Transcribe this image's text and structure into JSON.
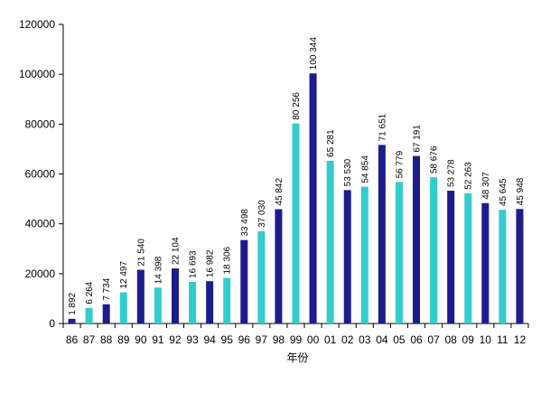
{
  "chart_data": {
    "type": "bar",
    "title": "",
    "xlabel": "年份",
    "ylabel": "",
    "ylim": [
      0,
      120000
    ],
    "yticks": [
      "0",
      "20000",
      "40000",
      "60000",
      "80000",
      "100000",
      "120000"
    ],
    "grid": false,
    "legend": "none",
    "categories": [
      "86",
      "87",
      "88",
      "89",
      "90",
      "91",
      "92",
      "93",
      "94",
      "95",
      "96",
      "97",
      "98",
      "99",
      "00",
      "01",
      "02",
      "03",
      "04",
      "05",
      "06",
      "07",
      "08",
      "09",
      "10",
      "11",
      "12"
    ],
    "values": [
      1892,
      6264,
      7734,
      12497,
      21540,
      14398,
      22104,
      16693,
      16982,
      18306,
      33498,
      37030,
      45842,
      80256,
      100344,
      65281,
      53530,
      54854,
      71651,
      56779,
      67191,
      58676,
      53278,
      52263,
      48307,
      45645,
      45948
    ],
    "value_labels": [
      "1 892",
      "6 264",
      "7 734",
      "12 497",
      "21 540",
      "14 398",
      "22 104",
      "16 693",
      "16 982",
      "18 306",
      "33 498",
      "37 030",
      "45 842",
      "80 256",
      "100 344",
      "65 281",
      "53 530",
      "54 854",
      "71 651",
      "56 779",
      "67 191",
      "58 676",
      "53 278",
      "52 263",
      "48 307",
      "45 645",
      "45 948"
    ],
    "colors": {
      "dark": "#1c1c8c",
      "light": "#33cccc",
      "axis": "#000000"
    }
  }
}
